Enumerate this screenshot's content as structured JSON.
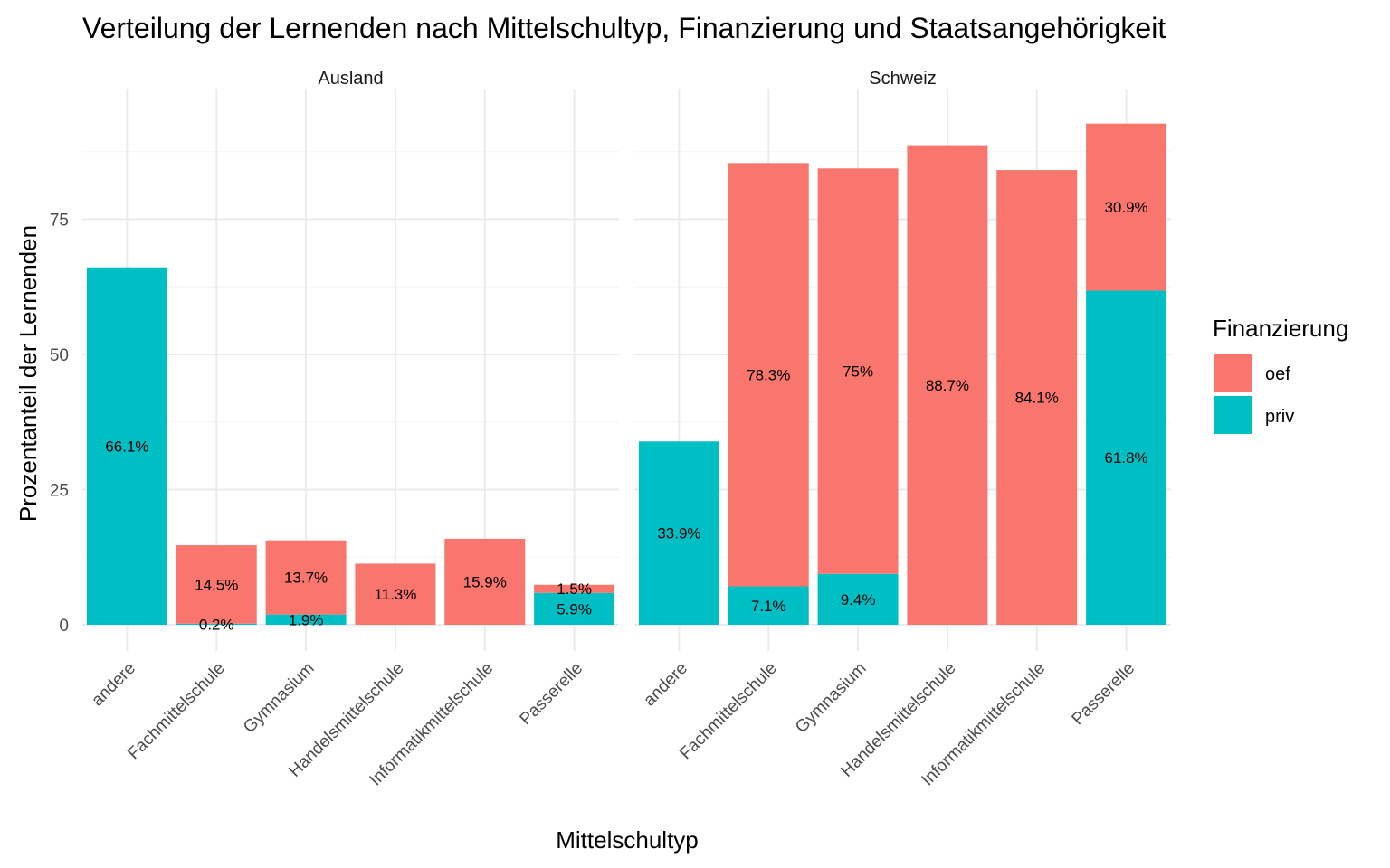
{
  "chart_data": {
    "type": "bar",
    "stacked": true,
    "title": "Verteilung der Lernenden nach Mittelschultyp, Finanzierung und Staatsangehörigkeit",
    "xlabel": "Mittelschultyp",
    "ylabel": "Prozentanteil der Lernenden",
    "ylim": [
      0,
      96
    ],
    "yticks": [
      "0",
      "25",
      "50",
      "75"
    ],
    "ytick_values": [
      0,
      25,
      50,
      75
    ],
    "categories": [
      "andere",
      "Fachmittelschule",
      "Gymnasium",
      "Handelsmittelschule",
      "Informatikmittelschule",
      "Passerelle"
    ],
    "legend": {
      "title": "Finanzierung",
      "position": "right",
      "entries": [
        {
          "key": "oef",
          "label": "oef",
          "color": "#F8766D"
        },
        {
          "key": "priv",
          "label": "priv",
          "color": "#00BFC4"
        }
      ]
    },
    "facets": [
      {
        "name": "Ausland",
        "series": [
          {
            "name": "oef",
            "values": [
              0,
              14.5,
              13.7,
              11.3,
              15.9,
              1.5
            ],
            "labels": [
              "",
              "14.5%",
              "13.7%",
              "11.3%",
              "15.9%",
              "1.5%"
            ]
          },
          {
            "name": "priv",
            "values": [
              66.1,
              0.2,
              1.9,
              0,
              0,
              5.9
            ],
            "labels": [
              "66.1%",
              "0.2%",
              "1.9%",
              "",
              "",
              "5.9%"
            ]
          }
        ]
      },
      {
        "name": "Schweiz",
        "series": [
          {
            "name": "oef",
            "values": [
              0,
              78.3,
              75,
              88.7,
              84.1,
              30.9
            ],
            "labels": [
              "",
              "78.3%",
              "75%",
              "88.7%",
              "84.1%",
              "30.9%"
            ]
          },
          {
            "name": "priv",
            "values": [
              33.9,
              7.1,
              9.4,
              0,
              0,
              61.8
            ],
            "labels": [
              "33.9%",
              "7.1%",
              "9.4%",
              "",
              "",
              "61.8%"
            ]
          }
        ]
      }
    ]
  }
}
